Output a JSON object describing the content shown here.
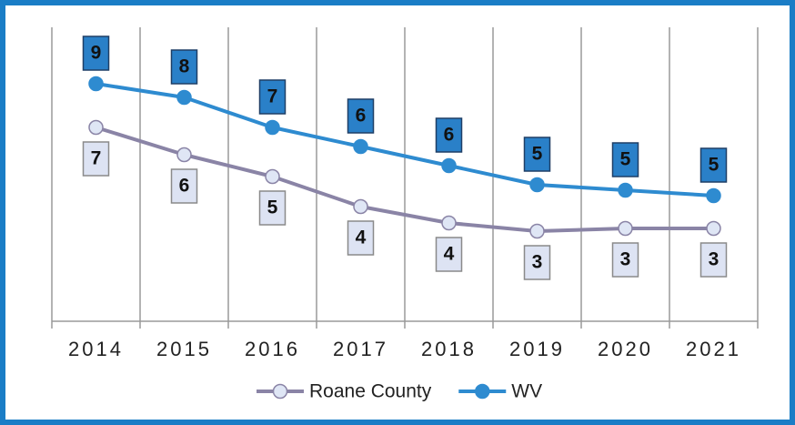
{
  "chart_data": {
    "type": "line",
    "categories": [
      "2014",
      "2015",
      "2016",
      "2017",
      "2018",
      "2019",
      "2020",
      "2021"
    ],
    "series": [
      {
        "name": "Roane County",
        "color": "#8a84a6",
        "marker_fill": "#dfe6f5",
        "values": [
          7.1,
          6.1,
          5.3,
          4.2,
          3.6,
          3.3,
          3.4,
          3.4
        ],
        "value_labels": [
          "7",
          "6",
          "5",
          "4",
          "4",
          "3",
          "3",
          "3"
        ]
      },
      {
        "name": "WV",
        "color": "#2e8bd0",
        "marker_fill": "#2e8bd0",
        "values": [
          8.7,
          8.2,
          7.1,
          6.4,
          5.7,
          5.0,
          4.8,
          4.6
        ],
        "value_labels": [
          "9",
          "8",
          "7",
          "6",
          "6",
          "5",
          "5",
          "5"
        ]
      }
    ],
    "ylim": [
      0,
      10
    ],
    "legend": "bottom"
  }
}
